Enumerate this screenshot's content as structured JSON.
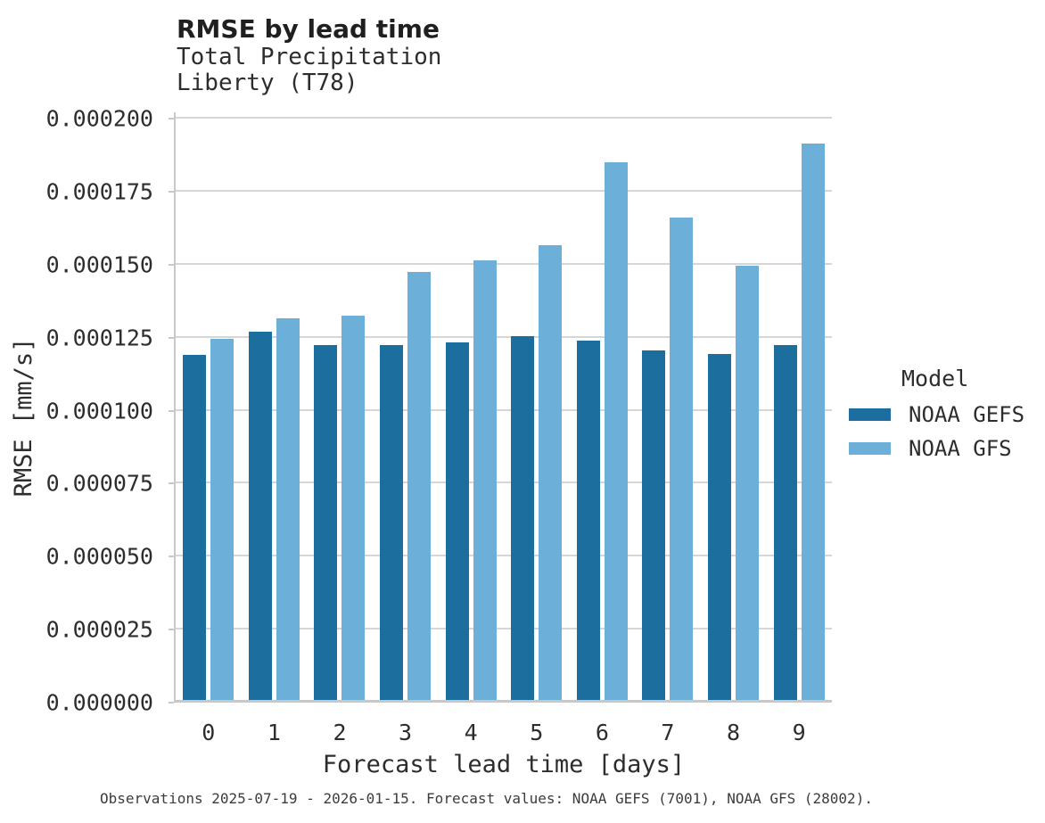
{
  "header": {
    "title": "RMSE by lead time",
    "subtitle_line1": "Total Precipitation",
    "subtitle_line2": "Liberty (T78)"
  },
  "legend": {
    "title": "Model",
    "items": [
      {
        "label": "NOAA GEFS",
        "color": "#1b6e9e"
      },
      {
        "label": "NOAA GFS",
        "color": "#6cb0d9"
      }
    ]
  },
  "footer": {
    "note": "Observations 2025-07-19 - 2026-01-15. Forecast values: NOAA GEFS (7001), NOAA GFS (28002)."
  },
  "colors": {
    "gefs_bar": "#1b6e9e",
    "gfs_bar": "#6cb0d9",
    "gridline": "#d6d6d6",
    "axis": "#c8c8c8"
  },
  "chart_data": {
    "type": "bar",
    "title": "RMSE by lead time",
    "subtitle": [
      "Total Precipitation",
      "Liberty (T78)"
    ],
    "xlabel": "Forecast lead time [days]",
    "ylabel": "RMSE [mm/s]",
    "categories": [
      "0",
      "1",
      "2",
      "3",
      "4",
      "5",
      "6",
      "7",
      "8",
      "9"
    ],
    "series": [
      {
        "name": "NOAA GEFS",
        "color": "#1b6e9e",
        "values": [
          0.000119,
          0.000127,
          0.0001225,
          0.0001225,
          0.0001235,
          0.0001255,
          0.000124,
          0.0001205,
          0.0001195,
          0.0001225
        ]
      },
      {
        "name": "NOAA GFS",
        "color": "#6cb0d9",
        "values": [
          0.0001245,
          0.0001315,
          0.0001325,
          0.0001475,
          0.0001515,
          0.0001565,
          0.000185,
          0.000166,
          0.0001495,
          0.0001915
        ]
      }
    ],
    "ylim": [
      0,
      0.0002
    ],
    "y_ticks": [
      "0.000000",
      "0.000025",
      "0.000050",
      "0.000075",
      "0.000100",
      "0.000125",
      "0.000150",
      "0.000175",
      "0.000200"
    ],
    "grid": "horizontal",
    "legend_position": "right",
    "caption": "Observations 2025-07-19 - 2026-01-15. Forecast values: NOAA GEFS (7001), NOAA GFS (28002)."
  }
}
